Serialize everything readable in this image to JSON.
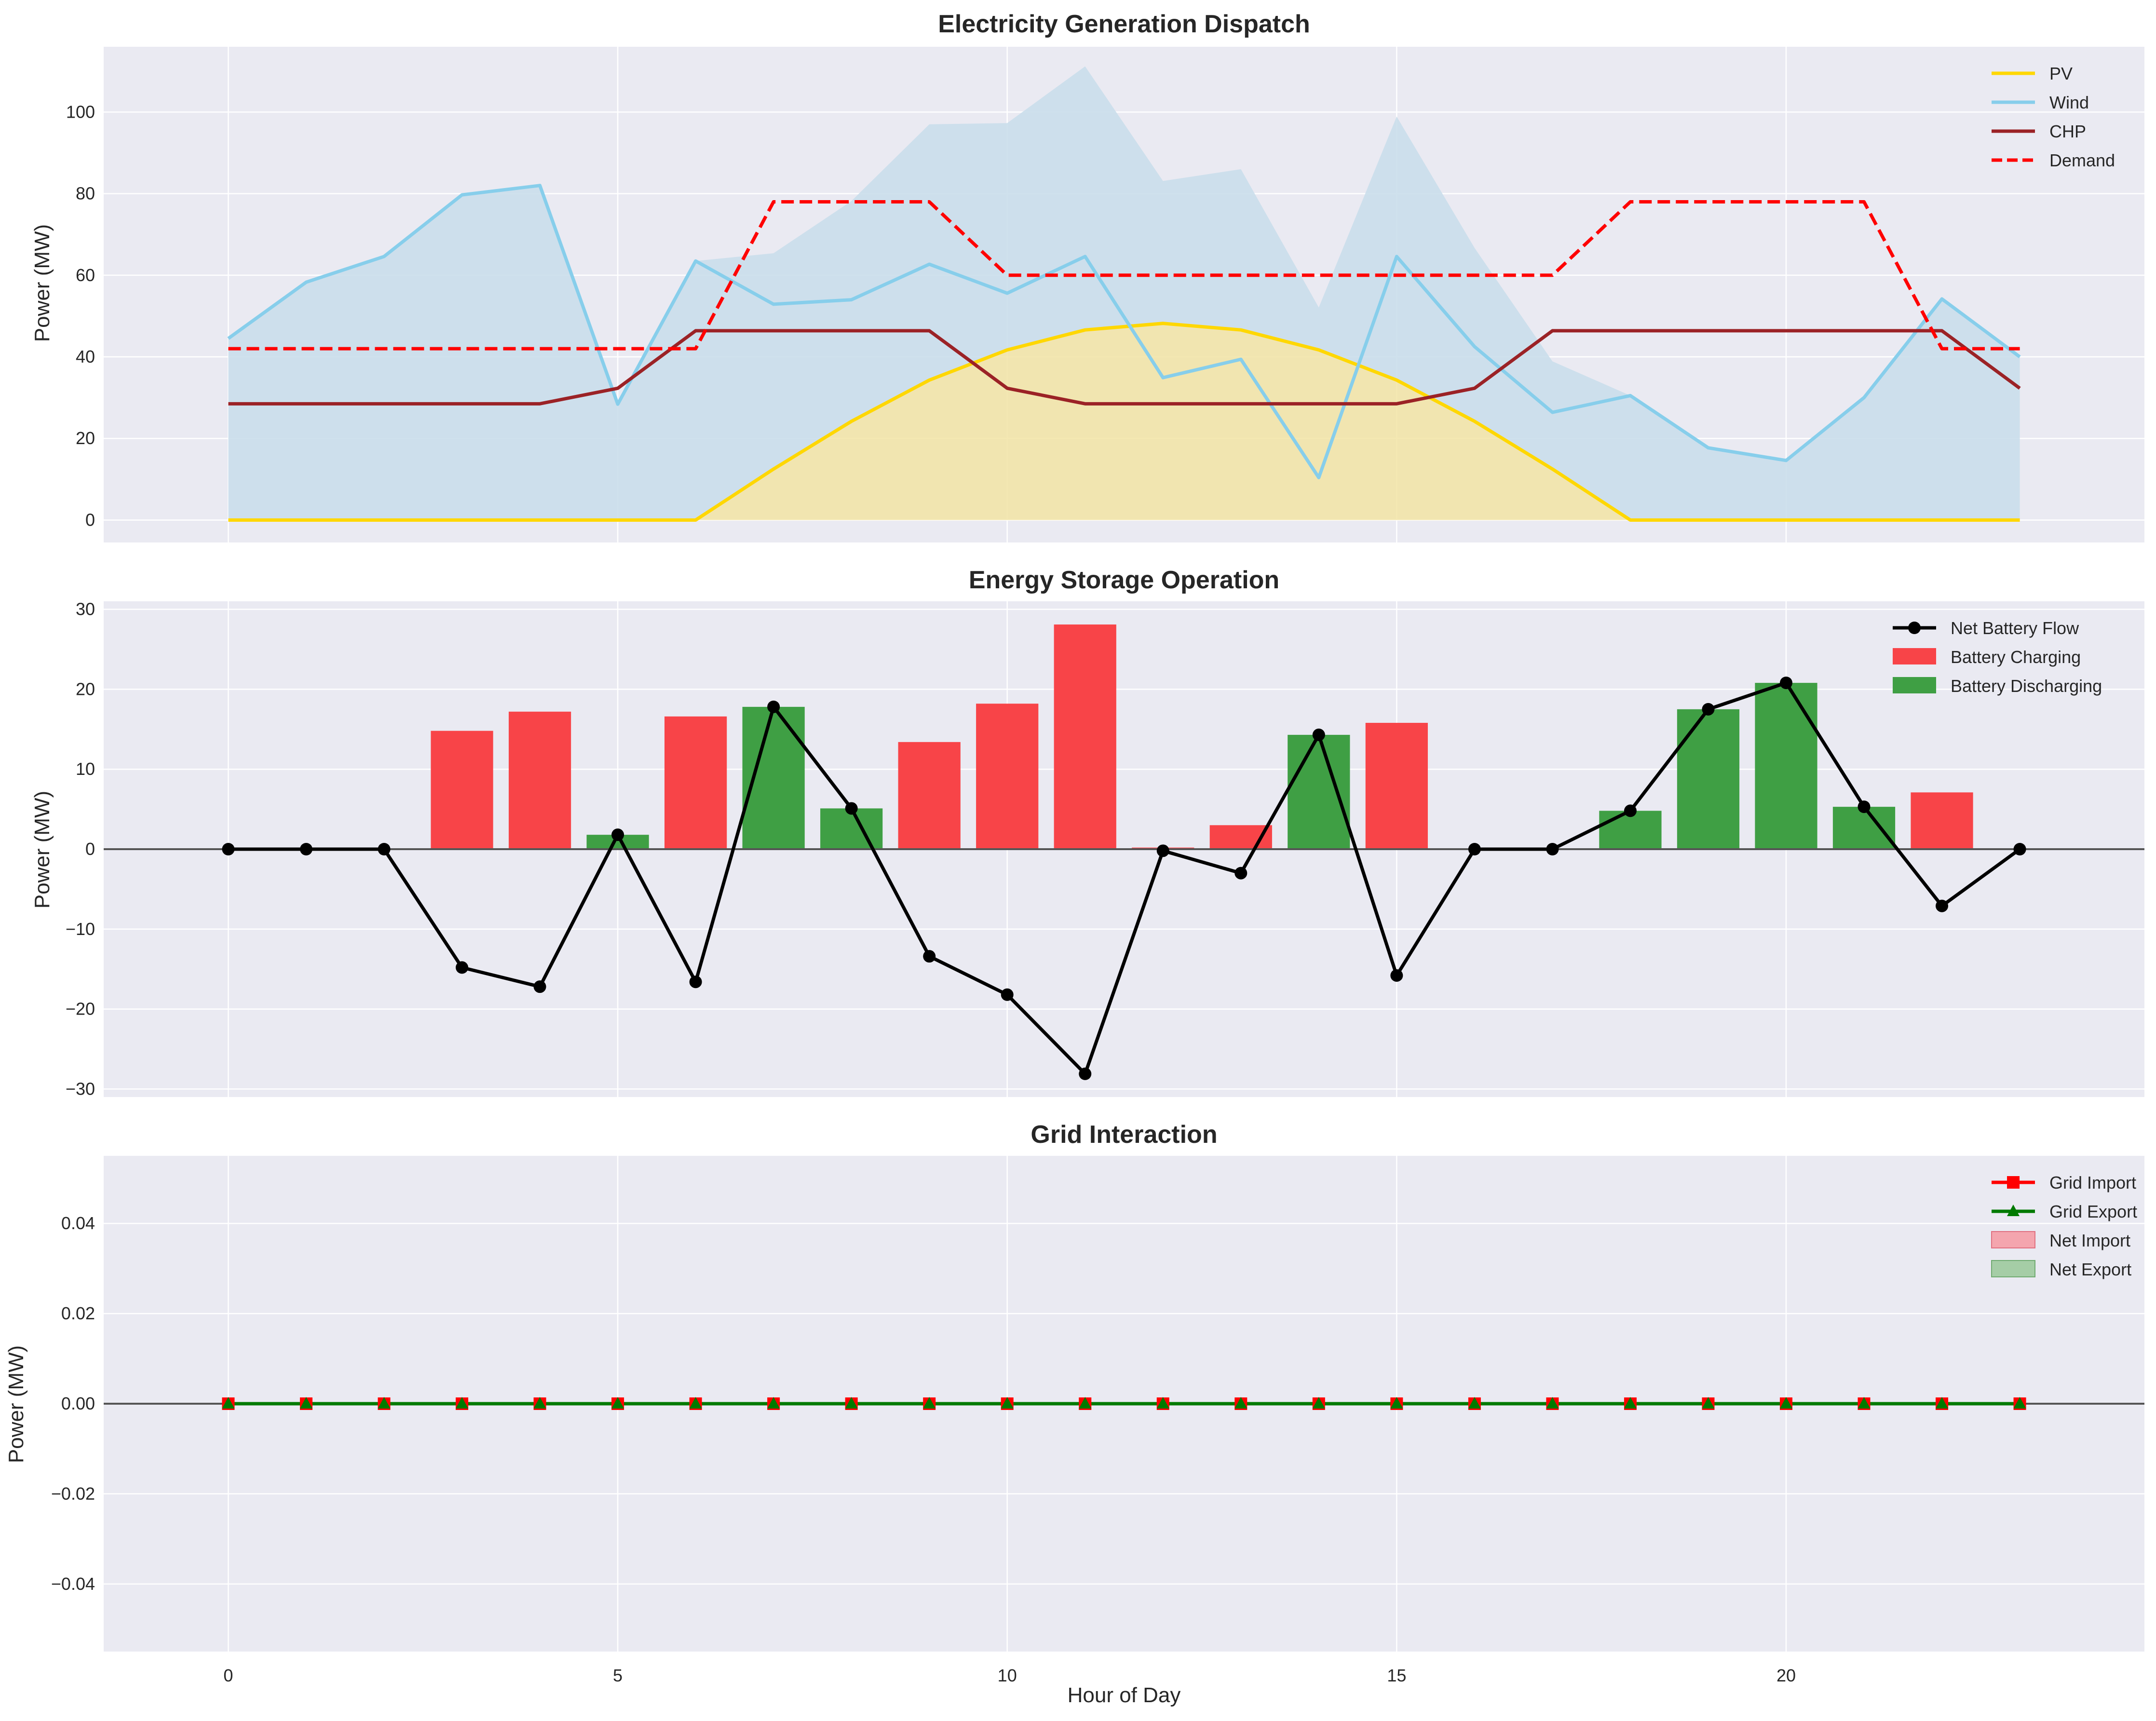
{
  "chart_data": [
    {
      "type": "line",
      "title": "Electricity Generation Dispatch",
      "xlabel": "",
      "ylabel": "Power (MW)",
      "xlim": [
        -1.6,
        24.6
      ],
      "ylim": [
        -5.5,
        116
      ],
      "yticks": [
        0,
        20,
        40,
        60,
        80,
        100
      ],
      "xticks": [
        0,
        5,
        10,
        15,
        20
      ],
      "grid": true,
      "legend": "top-right",
      "x": [
        0,
        1,
        2,
        3,
        4,
        5,
        6,
        7,
        8,
        9,
        10,
        11,
        12,
        13,
        14,
        15,
        16,
        17,
        18,
        19,
        20,
        21,
        22,
        23
      ],
      "series": [
        {
          "name": "PV",
          "kind": "line",
          "color": "#FFD700",
          "values": [
            0,
            0,
            0,
            0,
            0,
            0,
            0,
            12.5,
            24.2,
            34.3,
            41.7,
            46.6,
            48.2,
            46.6,
            41.7,
            34.3,
            24.2,
            12.5,
            0,
            0,
            0,
            0,
            0,
            0
          ],
          "fill": true,
          "fill_color": "#F2E4A5"
        },
        {
          "name": "Wind",
          "kind": "line",
          "color": "#87CEEB",
          "values": [
            44.5,
            58.3,
            64.6,
            79.7,
            82,
            28.4,
            63.5,
            52.9,
            54,
            62.7,
            55.6,
            64.6,
            34.9,
            39.4,
            10.4,
            64.6,
            42.5,
            26.4,
            30.5,
            17.7,
            14.6,
            30,
            54.2,
            40
          ],
          "fill": "stacked-on-PV",
          "fill_color": "#CADEEB"
        },
        {
          "name": "CHP",
          "kind": "line",
          "color": "#9B2226",
          "values": [
            28.5,
            28.5,
            28.5,
            28.5,
            28.5,
            32.3,
            46.4,
            46.4,
            46.4,
            46.4,
            32.3,
            28.5,
            28.5,
            28.5,
            28.5,
            28.5,
            32.3,
            46.4,
            46.4,
            46.4,
            46.4,
            46.4,
            46.4,
            32.3
          ]
        },
        {
          "name": "Demand",
          "kind": "dashed",
          "color": "#FF0000",
          "values": [
            42,
            42,
            42,
            42,
            42,
            42,
            42,
            78,
            78,
            78,
            60,
            60,
            60,
            60,
            60,
            60,
            60,
            60,
            78,
            78,
            78,
            78,
            42,
            42
          ]
        }
      ]
    },
    {
      "type": "bar",
      "title": "Energy Storage Operation",
      "xlabel": "",
      "ylabel": "Power (MW)",
      "xlim": [
        -1.6,
        24.6
      ],
      "ylim": [
        -31,
        31
      ],
      "yticks": [
        -30,
        -20,
        -10,
        0,
        10,
        20,
        30
      ],
      "xticks": [
        0,
        5,
        10,
        15,
        20
      ],
      "grid": true,
      "legend": "top-right",
      "x": [
        0,
        1,
        2,
        3,
        4,
        5,
        6,
        7,
        8,
        9,
        10,
        11,
        12,
        13,
        14,
        15,
        16,
        17,
        18,
        19,
        20,
        21,
        22,
        23
      ],
      "series": [
        {
          "name": "Net Battery Flow",
          "kind": "line-marker",
          "color": "#000000",
          "values": [
            0,
            0,
            0,
            -14.8,
            -17.2,
            1.8,
            -16.6,
            17.8,
            5.1,
            -13.4,
            -18.2,
            -28.1,
            -0.2,
            -3,
            14.3,
            -15.8,
            0,
            0,
            4.8,
            17.5,
            20.8,
            5.3,
            -7.1,
            0
          ]
        },
        {
          "name": "Battery Charging",
          "kind": "bar",
          "color": "#F84448",
          "values": [
            0,
            0,
            0,
            14.8,
            17.2,
            0,
            16.6,
            0,
            0,
            13.4,
            18.2,
            28.1,
            0.2,
            3,
            0,
            15.8,
            0,
            0,
            0,
            0,
            0,
            0,
            7.1,
            0
          ]
        },
        {
          "name": "Battery Discharging",
          "kind": "bar",
          "color": "#3F9F44",
          "values": [
            0,
            0,
            0,
            0,
            0,
            1.8,
            0,
            17.8,
            5.1,
            0,
            0,
            0,
            0,
            0,
            14.3,
            0,
            0,
            0,
            4.8,
            17.5,
            20.8,
            5.3,
            0,
            0
          ]
        }
      ]
    },
    {
      "type": "line",
      "title": "Grid Interaction",
      "xlabel": "Hour of Day",
      "ylabel": "Power (MW)",
      "xlim": [
        -1.6,
        24.6
      ],
      "ylim": [
        -0.055,
        0.055
      ],
      "yticks": [
        -0.04,
        -0.02,
        0.0,
        0.02,
        0.04
      ],
      "ytick_labels": [
        "−0.04",
        "−0.02",
        "0.00",
        "0.02",
        "0.04"
      ],
      "xticks": [
        0,
        5,
        10,
        15,
        20
      ],
      "grid": true,
      "legend": "top-right",
      "x": [
        0,
        1,
        2,
        3,
        4,
        5,
        6,
        7,
        8,
        9,
        10,
        11,
        12,
        13,
        14,
        15,
        16,
        17,
        18,
        19,
        20,
        21,
        22,
        23
      ],
      "series": [
        {
          "name": "Grid Import",
          "kind": "line-square",
          "color": "#FF0000",
          "values": [
            0,
            0,
            0,
            0,
            0,
            0,
            0,
            0,
            0,
            0,
            0,
            0,
            0,
            0,
            0,
            0,
            0,
            0,
            0,
            0,
            0,
            0,
            0,
            0
          ]
        },
        {
          "name": "Grid Export",
          "kind": "line-triangle",
          "color": "#007A00",
          "values": [
            0,
            0,
            0,
            0,
            0,
            0,
            0,
            0,
            0,
            0,
            0,
            0,
            0,
            0,
            0,
            0,
            0,
            0,
            0,
            0,
            0,
            0,
            0,
            0
          ]
        },
        {
          "name": "Net Import",
          "kind": "area",
          "color": "#F4A5AE",
          "values": [
            0,
            0,
            0,
            0,
            0,
            0,
            0,
            0,
            0,
            0,
            0,
            0,
            0,
            0,
            0,
            0,
            0,
            0,
            0,
            0,
            0,
            0,
            0,
            0
          ]
        },
        {
          "name": "Net Export",
          "kind": "area",
          "color": "#A5CDA6",
          "values": [
            0,
            0,
            0,
            0,
            0,
            0,
            0,
            0,
            0,
            0,
            0,
            0,
            0,
            0,
            0,
            0,
            0,
            0,
            0,
            0,
            0,
            0,
            0,
            0
          ]
        }
      ]
    }
  ]
}
